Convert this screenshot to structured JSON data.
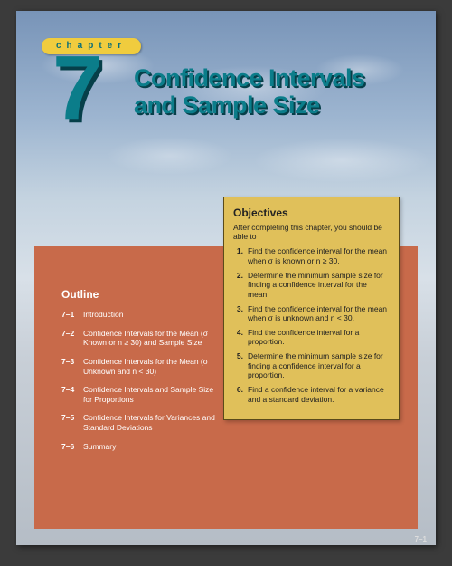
{
  "chapter_label": "chapter",
  "chapter_number": "7",
  "title_line1": "Confidence Intervals",
  "title_line2": "and Sample Size",
  "outline": {
    "heading": "Outline",
    "items": [
      {
        "num": "7–1",
        "text": "Introduction"
      },
      {
        "num": "7–2",
        "text": "Confidence Intervals for the Mean (σ Known or n ≥ 30) and Sample Size"
      },
      {
        "num": "7–3",
        "text": "Confidence Intervals for the Mean (σ Unknown and n < 30)"
      },
      {
        "num": "7–4",
        "text": "Confidence Intervals and Sample Size for Proportions"
      },
      {
        "num": "7–5",
        "text": "Confidence Intervals for Variances and Standard Deviations"
      },
      {
        "num": "7–6",
        "text": "Summary"
      }
    ]
  },
  "objectives": {
    "heading": "Objectives",
    "intro": "After completing this chapter, you should be able to",
    "items": [
      {
        "num": "1.",
        "text": "Find the confidence interval for the mean when σ is known or n ≥ 30."
      },
      {
        "num": "2.",
        "text": "Determine the minimum sample size for finding a confidence interval for the mean."
      },
      {
        "num": "3.",
        "text": "Find the confidence interval for the mean when σ is unknown and n < 30."
      },
      {
        "num": "4.",
        "text": "Find the confidence interval for a proportion."
      },
      {
        "num": "5.",
        "text": "Determine the minimum sample size for finding a confidence interval for a proportion."
      },
      {
        "num": "6.",
        "text": "Find a confidence interval for a variance and a standard deviation."
      }
    ]
  },
  "page_number": "7–1",
  "colors": {
    "page_bg": "#3b3b3b",
    "accent_teal": "#0b7d8a",
    "accent_teal_shadow": "#063f49",
    "pill_yellow": "#f0cc3e",
    "body_orange": "#c86a4a",
    "obj_box": "#e0c05a",
    "obj_border": "#5a4a1a",
    "outline_text": "#ffffff"
  }
}
